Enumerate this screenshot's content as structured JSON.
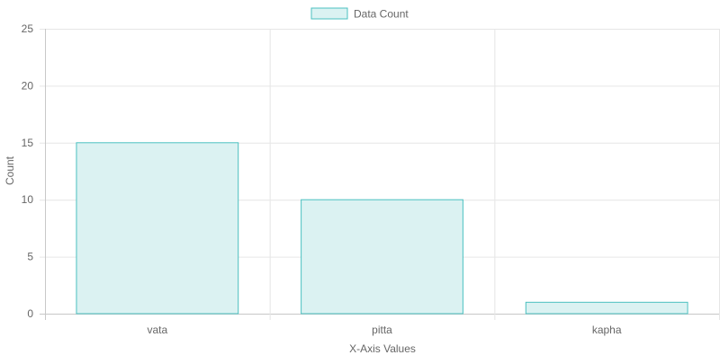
{
  "chart_data": {
    "type": "bar",
    "categories": [
      "vata",
      "pitta",
      "kapha"
    ],
    "series": [
      {
        "name": "Data Count",
        "values": [
          15,
          10,
          1
        ]
      }
    ],
    "xlabel": "X-Axis Values",
    "ylabel": "Count",
    "ylim": [
      0,
      25
    ],
    "yticks": [
      0,
      5,
      10,
      15,
      20,
      25
    ],
    "grid": true,
    "legend": "top-center",
    "colors": {
      "fill": "#dbf2f2",
      "stroke": "#4bc0c0",
      "grid": "#e6e6e6",
      "text": "#666666"
    }
  }
}
